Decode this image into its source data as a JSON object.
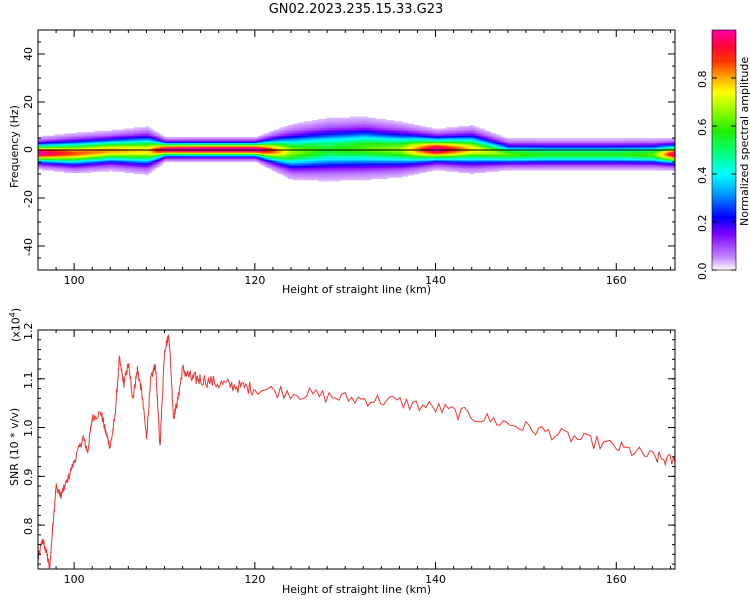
{
  "figure": {
    "title": "GN02.2023.235.15.33.G23"
  },
  "chart_data": [
    {
      "type": "heatmap",
      "xlabel": "Height of straight line (km)",
      "ylabel": "Frequency (Hz)",
      "xlim": [
        96,
        166.5
      ],
      "ylim": [
        -50,
        50
      ],
      "xticks": [
        100,
        120,
        140,
        160
      ],
      "yticks": [
        -40,
        -20,
        0,
        20,
        40
      ],
      "xtick_labels": [
        "100",
        "120",
        "140",
        "160"
      ],
      "ytick_labels": [
        "-40",
        "-20",
        "0",
        "20",
        "40"
      ],
      "colorbar": {
        "label": "Normalized spectral amplitude",
        "range": [
          0,
          1
        ],
        "ticks": [
          0.0,
          0.2,
          0.4,
          0.6,
          0.8
        ],
        "tick_labels": [
          "0.0",
          "0.2",
          "0.4",
          "0.6",
          "0.8"
        ]
      },
      "reference_line_frequency": 0,
      "band_profile": {
        "height_km": [
          96,
          100,
          104,
          108,
          110,
          114,
          120,
          124,
          128,
          132,
          136,
          140,
          144,
          148,
          152,
          156,
          160,
          164,
          166.5
        ],
        "center_freq_hz": [
          -1.5,
          -1.5,
          -0.5,
          -0.5,
          0,
          0,
          0,
          -1,
          0,
          0.5,
          0,
          0,
          0,
          -2,
          -2,
          -2,
          -2,
          -2,
          -2
        ],
        "spread_hz": [
          4,
          5,
          5,
          6,
          3,
          3,
          3,
          7,
          8,
          8,
          7,
          5,
          6,
          4,
          4,
          4,
          4,
          4,
          4
        ],
        "peak_amplitude": [
          0.95,
          0.8,
          0.75,
          0.7,
          0.95,
          1.0,
          1.0,
          0.6,
          0.5,
          0.55,
          0.6,
          0.95,
          0.7,
          0.55,
          0.5,
          0.5,
          0.5,
          0.55,
          0.95
        ]
      }
    },
    {
      "type": "line",
      "xlabel": "Height of straight line (km)",
      "ylabel": "SNR (10 * v/v)",
      "yscale_label": "(x10",
      "yscale_exponent": "4",
      "xlim": [
        96,
        166.5
      ],
      "ylim": [
        0.71,
        1.2
      ],
      "xticks": [
        100,
        120,
        140,
        160
      ],
      "yticks": [
        0.8,
        0.9,
        1.0,
        1.1,
        1.2
      ],
      "xtick_labels": [
        "100",
        "120",
        "140",
        "160"
      ],
      "ytick_labels": [
        "0.8",
        "0.9",
        "1.0",
        "1.1",
        "1.2"
      ],
      "series": [
        {
          "color": "#ee3333",
          "x": [
            96,
            96.5,
            97,
            97.3,
            97.6,
            98,
            98.5,
            99,
            100,
            101,
            101.5,
            102,
            103,
            103.5,
            104,
            104.5,
            105,
            105.5,
            106,
            106.5,
            107,
            107.5,
            108,
            108.5,
            109,
            109.5,
            110,
            110.5,
            111,
            111.5,
            112,
            113,
            114,
            116,
            118,
            120,
            125,
            130,
            135,
            140,
            145,
            150,
            155,
            160,
            164,
            166.5
          ],
          "y": [
            0.73,
            0.77,
            0.74,
            0.71,
            0.79,
            0.88,
            0.86,
            0.88,
            0.93,
            0.98,
            0.95,
            1.02,
            1.03,
            0.99,
            0.96,
            1.02,
            1.14,
            1.09,
            1.13,
            1.06,
            1.12,
            1.07,
            0.98,
            1.1,
            1.13,
            0.96,
            1.16,
            1.19,
            1.02,
            1.06,
            1.12,
            1.1,
            1.1,
            1.09,
            1.085,
            1.08,
            1.07,
            1.06,
            1.055,
            1.04,
            1.02,
            1.0,
            0.98,
            0.96,
            0.94,
            0.93
          ]
        }
      ]
    }
  ]
}
